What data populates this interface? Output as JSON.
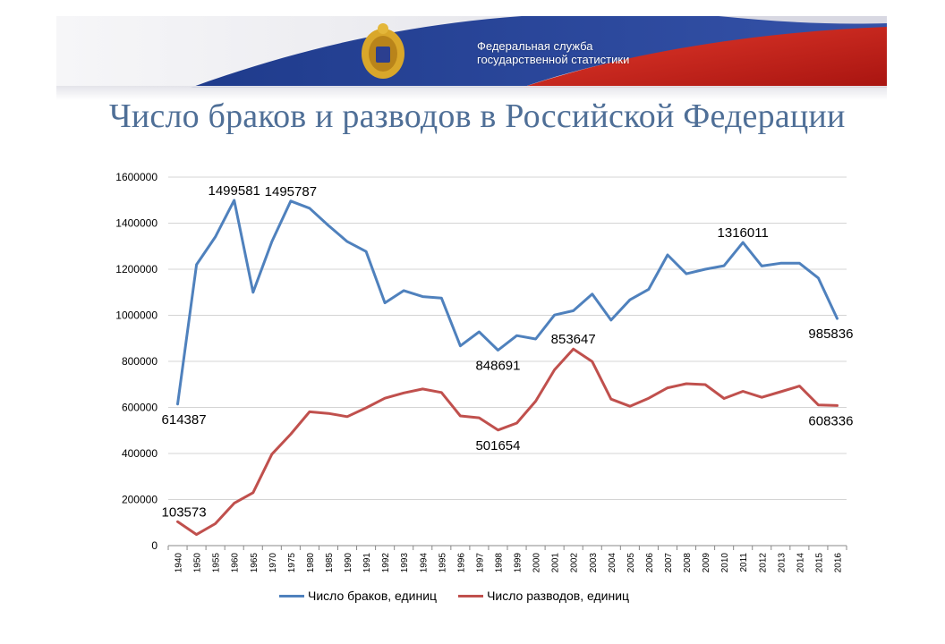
{
  "header": {
    "org_line1": "Федеральная служба",
    "org_line2": "государственной статистики",
    "title": "Число браков и разводов в Российской Федерации"
  },
  "colors": {
    "marriages": "#4f81bd",
    "divorces": "#c0504d",
    "title": "#4f6f97"
  },
  "chart_data": {
    "type": "line",
    "title": "Число браков и разводов в Российской Федерации",
    "xlabel": "",
    "ylabel": "",
    "ylim": [
      0,
      1600000
    ],
    "yticks": [
      "0",
      "200000",
      "400000",
      "600000",
      "800000",
      "1000000",
      "1200000",
      "1400000",
      "1600000"
    ],
    "grid": true,
    "legend_position": "bottom",
    "categories": [
      "1940",
      "1950",
      "1955",
      "1960",
      "1965",
      "1970",
      "1975",
      "1980",
      "1985",
      "1990",
      "1991",
      "1992",
      "1993",
      "1994",
      "1995",
      "1996",
      "1997",
      "1998",
      "1999",
      "2000",
      "2001",
      "2002",
      "2003",
      "2004",
      "2005",
      "2006",
      "2007",
      "2008",
      "2009",
      "2010",
      "2011",
      "2012",
      "2013",
      "2014",
      "2015",
      "2016"
    ],
    "series": [
      {
        "name": "Число браков, единиц",
        "values": [
          614387,
          1220000,
          1340000,
          1499581,
          1100000,
          1320000,
          1495787,
          1465000,
          1390000,
          1320000,
          1277000,
          1054000,
          1107000,
          1081000,
          1075000,
          867000,
          928000,
          848691,
          912000,
          897000,
          1001000,
          1020000,
          1092000,
          979000,
          1067000,
          1113000,
          1262000,
          1180000,
          1200000,
          1215000,
          1316011,
          1214000,
          1226000,
          1226000,
          1162000,
          985836
        ],
        "labels": [
          {
            "index": 0,
            "text": "614387",
            "pos": "below"
          },
          {
            "index": 3,
            "text": "1499581",
            "pos": "above"
          },
          {
            "index": 6,
            "text": "1495787",
            "pos": "above"
          },
          {
            "index": 17,
            "text": "848691",
            "pos": "below"
          },
          {
            "index": 30,
            "text": "1316011",
            "pos": "above"
          },
          {
            "index": 35,
            "text": "985836",
            "pos": "below"
          }
        ]
      },
      {
        "name": "Число разводов, единиц",
        "values": [
          103573,
          48000,
          95000,
          184000,
          230000,
          397000,
          484000,
          581000,
          574000,
          560000,
          598000,
          640000,
          663000,
          680000,
          665000,
          563000,
          555000,
          501654,
          532000,
          627000,
          763000,
          853647,
          799000,
          636000,
          605000,
          640000,
          685000,
          703000,
          699000,
          639000,
          670000,
          644000,
          668000,
          693000,
          611000,
          608336
        ],
        "labels": [
          {
            "index": 0,
            "text": "103573",
            "pos": "above"
          },
          {
            "index": 17,
            "text": "501654",
            "pos": "below"
          },
          {
            "index": 21,
            "text": "853647",
            "pos": "above"
          },
          {
            "index": 35,
            "text": "608336",
            "pos": "below"
          }
        ]
      }
    ]
  }
}
